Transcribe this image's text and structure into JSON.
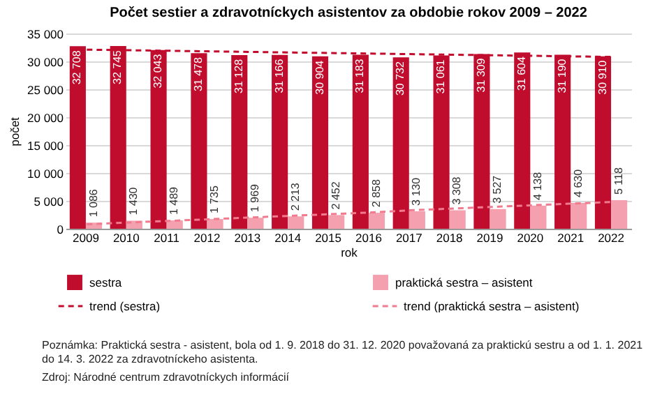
{
  "chart_data": {
    "type": "bar",
    "title": "Počet sestier a zdravotníckych asistentov za obdobie rokov 2009 – 2022",
    "xlabel": "rok",
    "ylabel": "počet",
    "categories": [
      "2009",
      "2010",
      "2011",
      "2012",
      "2013",
      "2014",
      "2015",
      "2016",
      "2017",
      "2018",
      "2019",
      "2020",
      "2021",
      "2022"
    ],
    "series": [
      {
        "name": "sestra",
        "color": "#c00d2e",
        "values": [
          32708,
          32745,
          32043,
          31478,
          31128,
          31166,
          30904,
          31183,
          30732,
          31061,
          31309,
          31604,
          31190,
          30910
        ],
        "value_labels": [
          "32 708",
          "32 745",
          "32 043",
          "31 478",
          "31 128",
          "31 166",
          "30 904",
          "31 183",
          "30 732",
          "31 061",
          "31 309",
          "31 604",
          "31 190",
          "30 910"
        ]
      },
      {
        "name": "praktická sestra – asistent",
        "color": "#f4a0ae",
        "values": [
          1086,
          1430,
          1489,
          1735,
          1969,
          2213,
          2452,
          2858,
          3130,
          3308,
          3527,
          4138,
          4630,
          5118
        ],
        "value_labels": [
          "1 086",
          "1 430",
          "1 489",
          "1 735",
          "1 969",
          "2 213",
          "2 452",
          "2 858",
          "3 130",
          "3 308",
          "3 527",
          "4 138",
          "4 630",
          "5 118"
        ]
      },
      {
        "name": "trend (sestra)",
        "type": "line",
        "line_style": "dashed",
        "color": "#c00d2e",
        "values": [
          32100,
          32000,
          31900,
          31800,
          31700,
          31600,
          31500,
          31400,
          31300,
          31200,
          31100,
          31000,
          30900,
          30800
        ]
      },
      {
        "name": "trend (praktická sestra – asistent)",
        "type": "line",
        "line_style": "dashed",
        "color": "#f07b8e",
        "values": [
          800,
          1100,
          1400,
          1700,
          2000,
          2300,
          2600,
          2900,
          3300,
          3600,
          3900,
          4200,
          4500,
          4800
        ]
      }
    ],
    "ylim": [
      0,
      35000
    ],
    "yticks": [
      {
        "value": 0,
        "label": "0"
      },
      {
        "value": 5000,
        "label": "5 000"
      },
      {
        "value": 10000,
        "label": "10 000"
      },
      {
        "value": 15000,
        "label": "15 000"
      },
      {
        "value": 20000,
        "label": "20 000"
      },
      {
        "value": 25000,
        "label": "25 000"
      },
      {
        "value": 30000,
        "label": "30 000"
      },
      {
        "value": 35000,
        "label": "35 000"
      }
    ],
    "grid": "y",
    "legend": "bottom",
    "annotations": [
      "Poznámka: Praktická sestra - asistent, bola od 1. 9. 2018 do 31. 12. 2020 považovaná za praktickú sestru a od 1. 1. 2021 do 14. 3. 2022 za zdravotníckeho asistenta.",
      "Zdroj: Národné centrum zdravotníckych informácií"
    ]
  }
}
